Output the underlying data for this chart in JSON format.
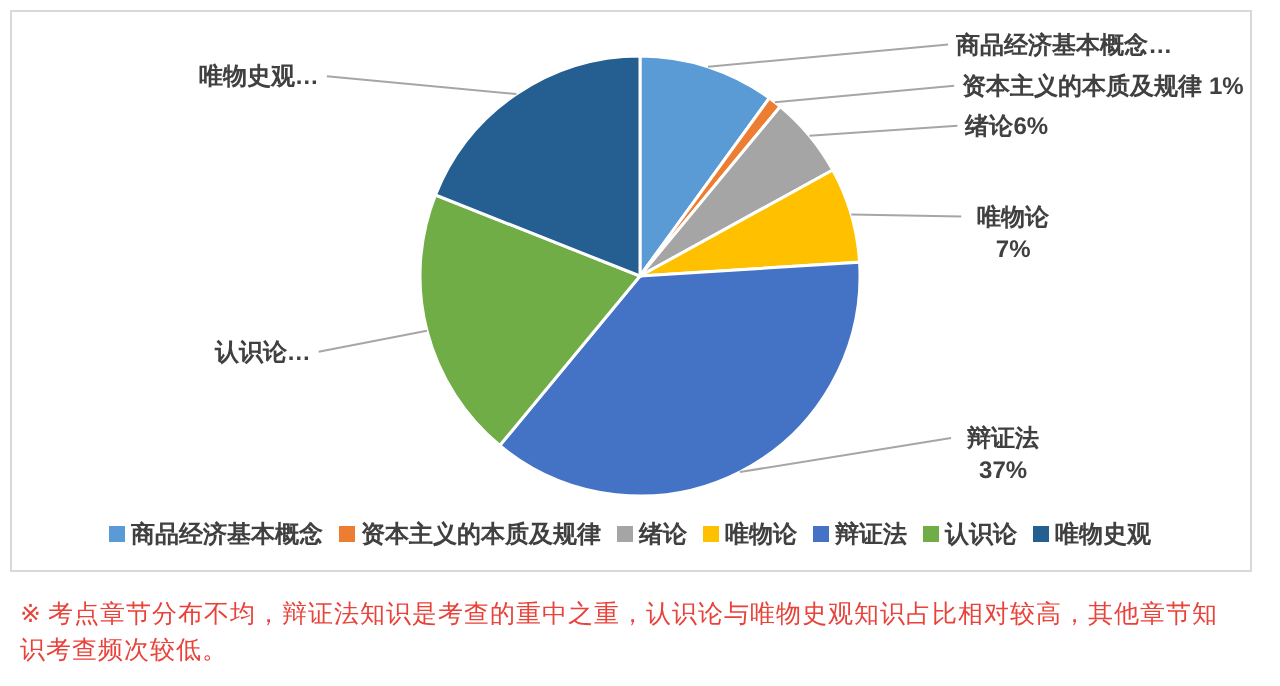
{
  "chart_data": {
    "type": "pie",
    "categories": [
      "商品经济基本概念",
      "资本主义的本质及规律",
      "绪论",
      "唯物论",
      "辩证法",
      "认识论",
      "唯物史观"
    ],
    "values": [
      10,
      1,
      6,
      7,
      37,
      20,
      19
    ],
    "colors": [
      "#5b9bd5",
      "#ed7d31",
      "#a5a5a5",
      "#ffc000",
      "#4472c4",
      "#70ad47",
      "#255e91"
    ],
    "value_labels": [
      "商品经济基本概念…",
      "资本主义的本质及规律 1%",
      "绪论6%",
      "唯物论\n7%",
      "辩证法\n37%",
      "认识论…",
      "唯物史观…"
    ],
    "legend": "bottom",
    "annotations": [
      "※ 考点章节分布不均，辩证法知识是考查的重中之重，认识论与唯物史观知识占比相对较高，其他章节知识考查频次较低。"
    ]
  }
}
